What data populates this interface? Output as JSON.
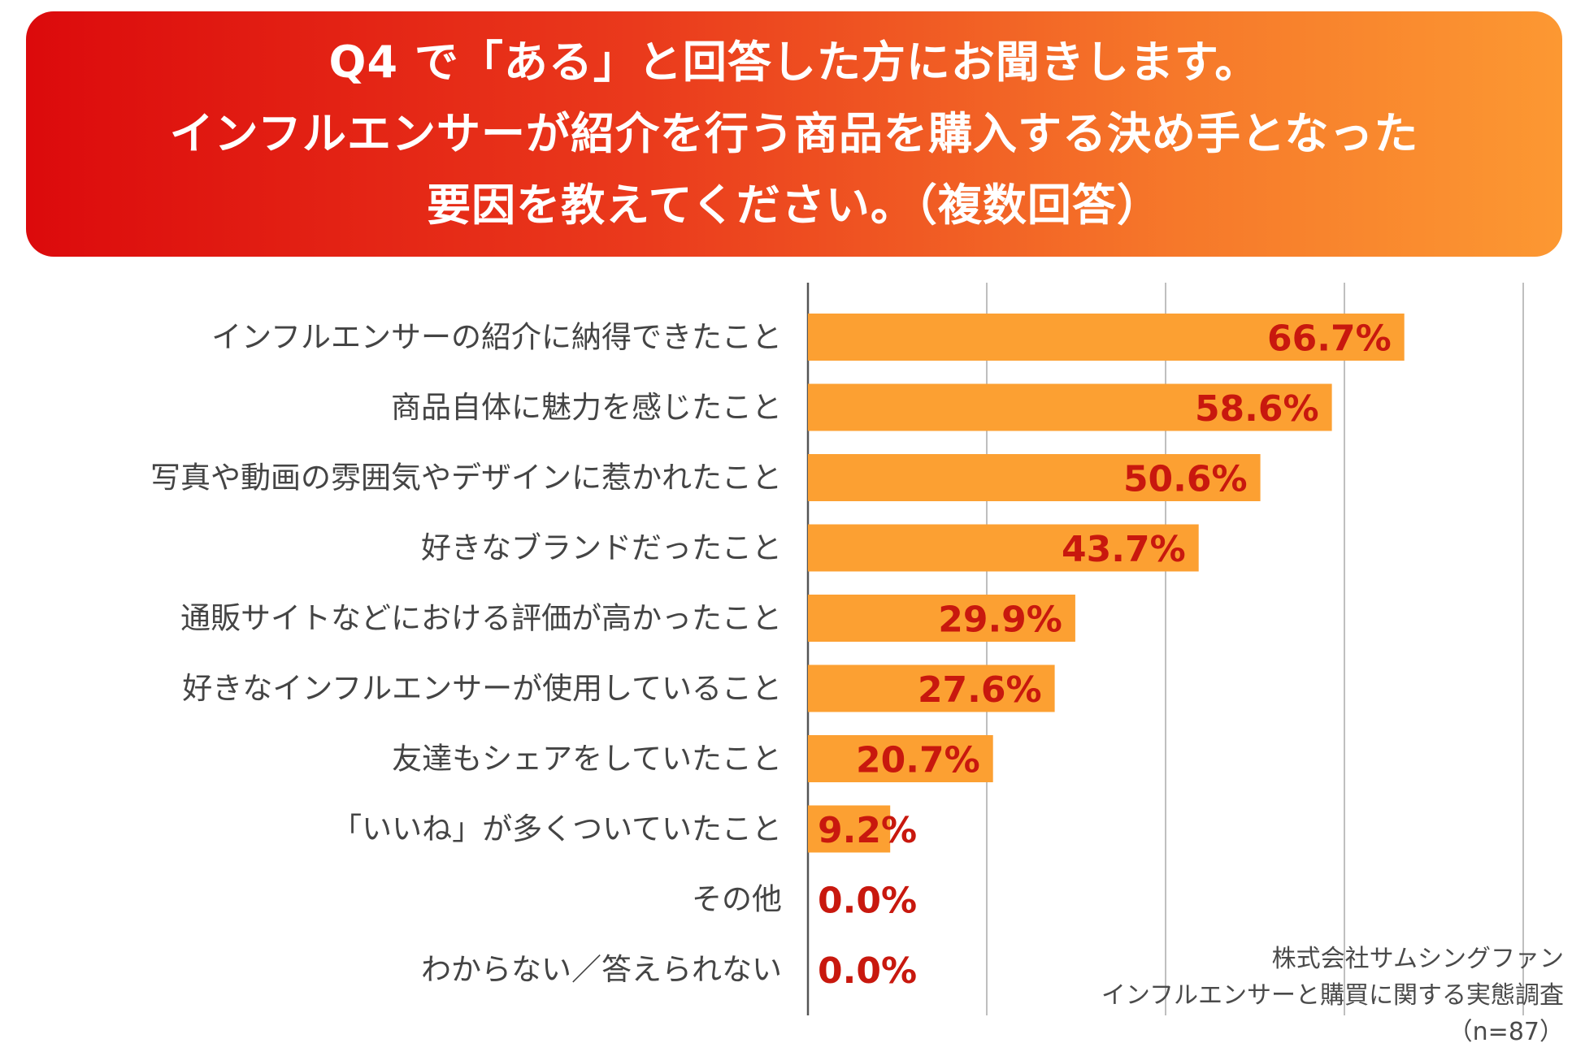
{
  "title": {
    "line1": "Q4 で「ある」と回答した方にお聞きします。",
    "line2": "インフルエンサーが紹介を行う商品を購入する決め手となった",
    "line3": "要因を教えてください。（複数回答）"
  },
  "source": {
    "company": "株式会社サムシングファン",
    "survey": "インフルエンサーと購買に関する実態調査",
    "n": "（n=87）"
  },
  "colors": {
    "bar": "#fca032",
    "value_text": "#c8180e",
    "label_text": "#444444",
    "grid": "#aaaaaa",
    "axis": "#555555"
  },
  "chart_data": {
    "type": "bar",
    "orientation": "horizontal",
    "title": "インフルエンサーが紹介を行う商品を購入する決め手となった要因",
    "xlabel": "",
    "ylabel": "",
    "xlim": [
      0,
      80
    ],
    "grid": true,
    "gridlines": [
      20,
      40,
      60,
      80
    ],
    "categories": [
      "インフルエンサーの紹介に納得できたこと",
      "商品自体に魅力を感じたこと",
      "写真や動画の雰囲気やデザインに惹かれたこと",
      "好きなブランドだったこと",
      "通販サイトなどにおける評価が高かったこと",
      "好きなインフルエンサーが使用していること",
      "友達もシェアをしていたこと",
      "「いいね」が多くついていたこと",
      "その他",
      "わからない／答えられない"
    ],
    "values": [
      66.7,
      58.6,
      50.6,
      43.7,
      29.9,
      27.6,
      20.7,
      9.2,
      0.0,
      0.0
    ],
    "value_labels": [
      "66.7%",
      "58.6%",
      "50.6%",
      "43.7%",
      "29.9%",
      "27.6%",
      "20.7%",
      "9.2%",
      "0.0%",
      "0.0%"
    ]
  }
}
